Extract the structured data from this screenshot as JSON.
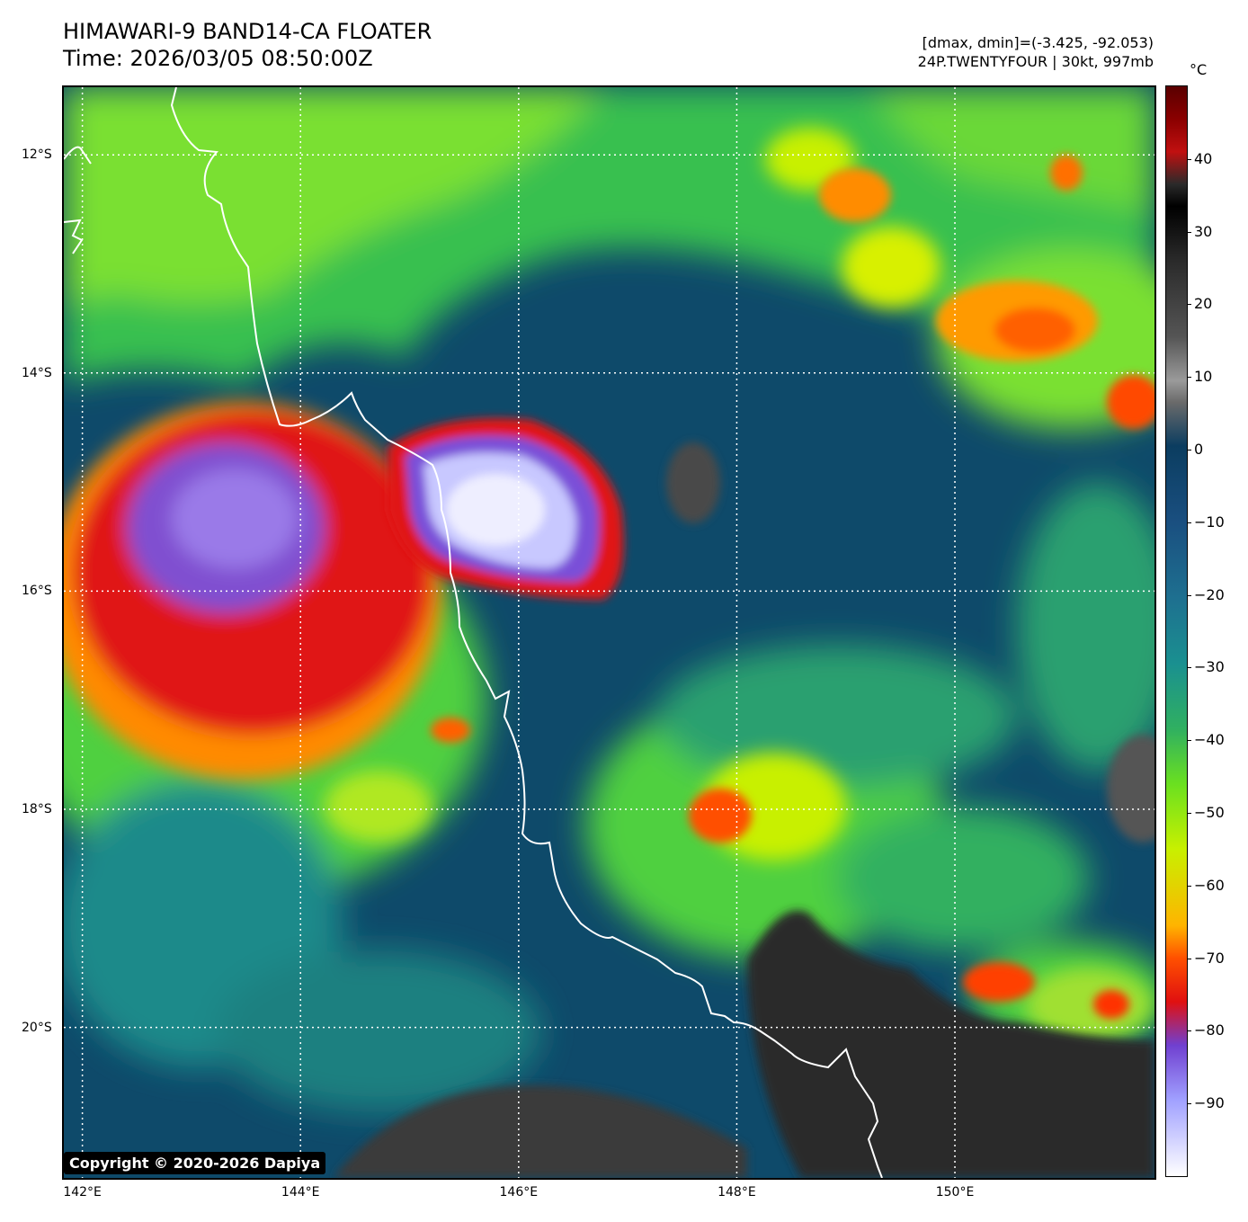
{
  "title": {
    "line1": "HIMAWARI-9 BAND14-CA FLOATER",
    "line2": "Time: 2026/03/05 08:50:00Z"
  },
  "info": {
    "line1": "[dmax, dmin]=(-3.425, -92.053)",
    "line2": "24P.TWENTYFOUR | 30kt, 997mb"
  },
  "colorbar": {
    "unit": "°C",
    "ticks": [
      "40",
      "30",
      "20",
      "10",
      "0",
      "−10",
      "−20",
      "−30",
      "−40",
      "−50",
      "−60",
      "−70",
      "−80",
      "−90"
    ],
    "tick_values": [
      40,
      30,
      20,
      10,
      0,
      -10,
      -20,
      -30,
      -40,
      -50,
      -60,
      -70,
      -80,
      -90
    ],
    "range": [
      -100,
      50
    ]
  },
  "map": {
    "x_ticks": [
      "142°E",
      "144°E",
      "146°E",
      "148°E",
      "150°E"
    ],
    "x_tick_values": [
      142,
      144,
      146,
      148,
      150
    ],
    "y_ticks": [
      "12°S",
      "14°S",
      "16°S",
      "18°S",
      "20°S"
    ],
    "y_tick_values": [
      -12,
      -14,
      -16,
      -18,
      -20
    ],
    "lon_range": [
      141.83,
      151.83
    ],
    "lat_range": [
      -11.38,
      -21.38
    ],
    "gridlines": true,
    "colors": {
      "background": "#0d4a6e",
      "coast": "#ffffff",
      "cold_core": "#e8e8ff",
      "overshoot": "#8060e0",
      "deep": "#e01818",
      "mid": "#f0c000",
      "green": "#40d040",
      "land": "#2a2a2a"
    }
  },
  "copyright": "Copyright © 2020-2026 Dapiya"
}
